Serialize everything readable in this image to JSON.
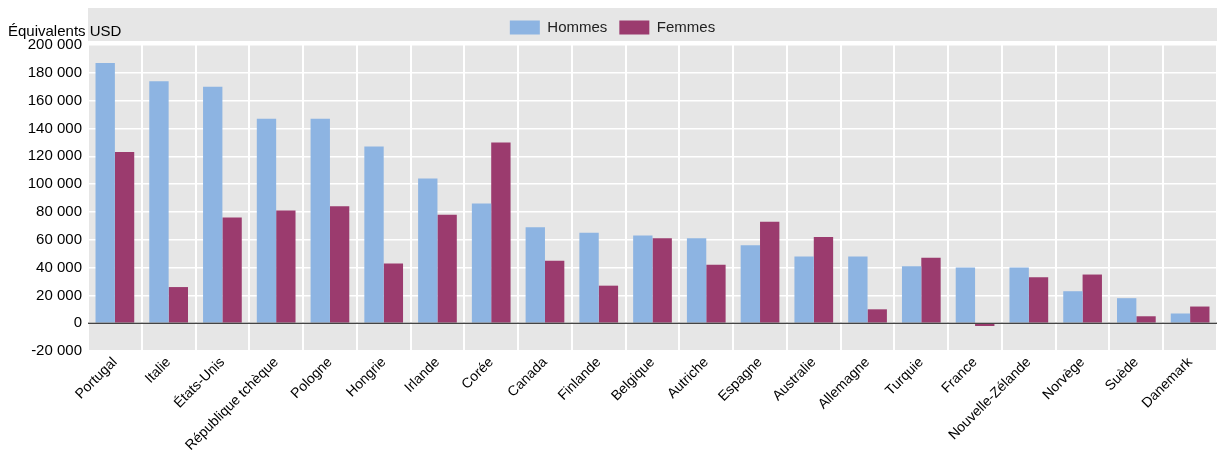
{
  "chart_data": {
    "type": "bar",
    "ylabel": "Équivalents USD",
    "categories": [
      "Portugal",
      "Italie",
      "États-Unis",
      "République tchèque",
      "Pologne",
      "Hongrie",
      "Irlande",
      "Corée",
      "Canada",
      "Finlande",
      "Belgique",
      "Autriche",
      "Espagne",
      "Australie",
      "Allemagne",
      "Turquie",
      "France",
      "Nouvelle-Zélande",
      "Norvège",
      "Suède",
      "Danemark"
    ],
    "series": [
      {
        "name": "Hommes",
        "color": "#8db4e2",
        "values": [
          187000,
          174000,
          170000,
          147000,
          147000,
          127000,
          104000,
          86000,
          69000,
          65000,
          63000,
          61000,
          56000,
          48000,
          48000,
          41000,
          40000,
          40000,
          23000,
          18000,
          7000
        ]
      },
      {
        "name": "Femmes",
        "color": "#9b3b6e",
        "values": [
          123000,
          26000,
          76000,
          81000,
          84000,
          43000,
          78000,
          130000,
          45000,
          27000,
          61000,
          42000,
          73000,
          62000,
          10000,
          47000,
          -2000,
          33000,
          35000,
          5000,
          12000
        ]
      }
    ],
    "ylim": [
      -20000,
      200000
    ],
    "yticks": [
      {
        "value": -20000,
        "label": "-20 000"
      },
      {
        "value": 0,
        "label": "0"
      },
      {
        "value": 20000,
        "label": "20 000"
      },
      {
        "value": 40000,
        "label": "40 000"
      },
      {
        "value": 60000,
        "label": "60 000"
      },
      {
        "value": 80000,
        "label": "80 000"
      },
      {
        "value": 100000,
        "label": "100 000"
      },
      {
        "value": 120000,
        "label": "120 000"
      },
      {
        "value": 140000,
        "label": "140 000"
      },
      {
        "value": 160000,
        "label": "160 000"
      },
      {
        "value": 180000,
        "label": "180 000"
      },
      {
        "value": 200000,
        "label": "200 000"
      }
    ],
    "grid": true,
    "legend": "top"
  }
}
